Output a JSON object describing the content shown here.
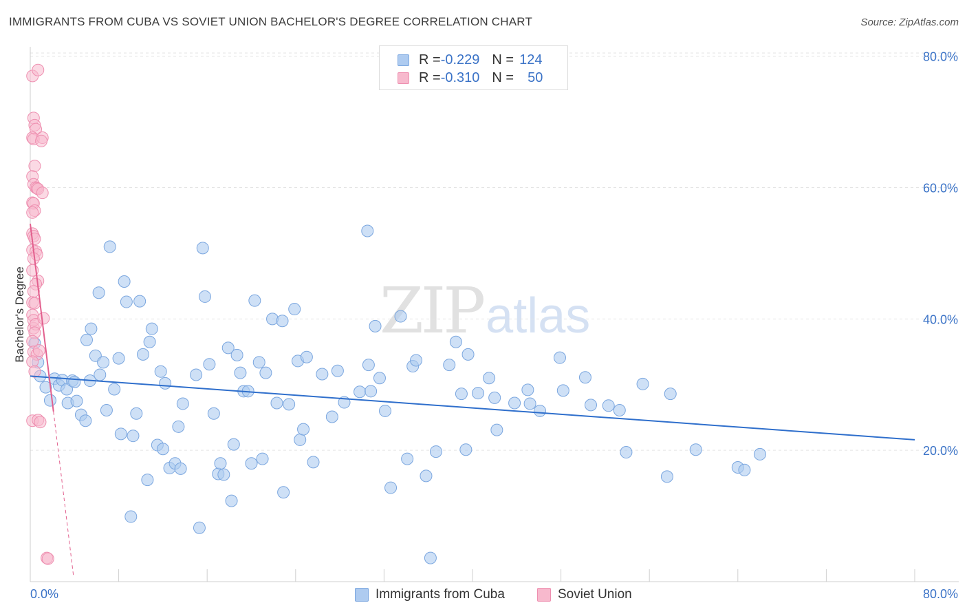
{
  "header": {
    "title": "IMMIGRANTS FROM CUBA VS SOVIET UNION BACHELOR'S DEGREE CORRELATION CHART",
    "source": "Source: ZipAtlas.com"
  },
  "legend": {
    "rows": [
      {
        "r_label": "R = ",
        "r_value": "-0.229",
        "n_label": "N = ",
        "n_value": "124"
      },
      {
        "r_label": "R = ",
        "r_value": "-0.310",
        "n_label": "N = ",
        "n_value": "50"
      }
    ]
  },
  "watermark": {
    "zip": "ZIP",
    "atlas": "atlas"
  },
  "colors": {
    "cuba_fill": "#aecbf0",
    "cuba_stroke": "#7aa6df",
    "cuba_line": "#2f6fcc",
    "soviet_fill": "#f7b9cd",
    "soviet_stroke": "#ee8fb0",
    "soviet_line": "#e2608e",
    "axis_label": "#3b73c7",
    "grid": "#e3e3e3"
  },
  "chart_data": {
    "type": "scatter",
    "title": "IMMIGRANTS FROM CUBA VS SOVIET UNION BACHELOR'S DEGREE CORRELATION CHART",
    "xlabel": "",
    "ylabel": "Bachelor's Degree",
    "xlim": [
      0,
      80
    ],
    "ylim": [
      0,
      80
    ],
    "x_tick_labels": [
      "0.0%",
      "80.0%"
    ],
    "y_ticks": [
      20,
      40,
      60,
      80
    ],
    "y_tick_labels": [
      "20.0%",
      "40.0%",
      "60.0%",
      "80.0%"
    ],
    "grid": true,
    "legend_position": "bottom",
    "series": [
      {
        "name": "Immigrants from Cuba",
        "r": -0.229,
        "n": 124,
        "trend": {
          "x0": 0.0,
          "y0": 31.3,
          "x1": 80.0,
          "y1": 21.6
        },
        "points": [
          [
            0.4,
            36.3
          ],
          [
            0.7,
            33.4
          ],
          [
            0.9,
            31.3
          ],
          [
            1.4,
            29.6
          ],
          [
            1.8,
            27.6
          ],
          [
            2.2,
            30.9
          ],
          [
            2.6,
            29.9
          ],
          [
            2.9,
            30.7
          ],
          [
            3.3,
            29.3
          ],
          [
            3.4,
            27.2
          ],
          [
            3.8,
            30.6
          ],
          [
            4.0,
            30.4
          ],
          [
            4.2,
            27.5
          ],
          [
            4.6,
            25.4
          ],
          [
            5.0,
            24.5
          ],
          [
            5.1,
            36.8
          ],
          [
            5.4,
            30.6
          ],
          [
            5.5,
            38.5
          ],
          [
            5.9,
            34.4
          ],
          [
            6.2,
            44.0
          ],
          [
            6.3,
            31.5
          ],
          [
            6.6,
            33.4
          ],
          [
            6.9,
            26.1
          ],
          [
            7.2,
            51.0
          ],
          [
            7.6,
            29.3
          ],
          [
            8.0,
            34.0
          ],
          [
            8.2,
            22.5
          ],
          [
            8.5,
            45.7
          ],
          [
            8.7,
            42.6
          ],
          [
            9.1,
            9.9
          ],
          [
            9.3,
            22.2
          ],
          [
            9.6,
            25.6
          ],
          [
            9.9,
            42.7
          ],
          [
            10.2,
            34.6
          ],
          [
            10.6,
            15.5
          ],
          [
            10.8,
            36.5
          ],
          [
            11.0,
            38.5
          ],
          [
            11.5,
            20.8
          ],
          [
            11.8,
            32.0
          ],
          [
            12.0,
            20.2
          ],
          [
            12.2,
            30.2
          ],
          [
            12.6,
            17.3
          ],
          [
            13.1,
            18.0
          ],
          [
            13.4,
            23.6
          ],
          [
            13.6,
            17.2
          ],
          [
            13.8,
            27.1
          ],
          [
            15.0,
            31.5
          ],
          [
            15.3,
            8.2
          ],
          [
            15.6,
            50.8
          ],
          [
            15.8,
            43.4
          ],
          [
            16.2,
            33.1
          ],
          [
            16.6,
            25.6
          ],
          [
            17.0,
            16.4
          ],
          [
            17.2,
            18.0
          ],
          [
            17.5,
            16.3
          ],
          [
            17.9,
            35.6
          ],
          [
            18.2,
            12.3
          ],
          [
            18.4,
            20.9
          ],
          [
            18.7,
            34.5
          ],
          [
            19.0,
            31.8
          ],
          [
            19.3,
            29.0
          ],
          [
            19.7,
            29.0
          ],
          [
            20.0,
            18.0
          ],
          [
            20.3,
            42.8
          ],
          [
            20.7,
            33.4
          ],
          [
            21.0,
            18.7
          ],
          [
            21.3,
            31.8
          ],
          [
            21.9,
            40.0
          ],
          [
            22.3,
            27.2
          ],
          [
            22.8,
            39.7
          ],
          [
            22.9,
            13.6
          ],
          [
            23.4,
            27.0
          ],
          [
            23.9,
            41.5
          ],
          [
            24.2,
            33.6
          ],
          [
            24.4,
            21.6
          ],
          [
            24.7,
            23.2
          ],
          [
            25.0,
            34.2
          ],
          [
            25.6,
            18.2
          ],
          [
            26.4,
            31.6
          ],
          [
            27.3,
            25.1
          ],
          [
            27.8,
            32.1
          ],
          [
            28.4,
            27.3
          ],
          [
            29.8,
            28.9
          ],
          [
            30.6,
            33.0
          ],
          [
            30.8,
            29.0
          ],
          [
            31.2,
            38.9
          ],
          [
            31.6,
            31.0
          ],
          [
            32.1,
            26.0
          ],
          [
            32.6,
            14.3
          ],
          [
            33.5,
            40.4
          ],
          [
            34.1,
            18.7
          ],
          [
            34.6,
            32.8
          ],
          [
            34.9,
            33.7
          ],
          [
            35.8,
            16.1
          ],
          [
            36.7,
            19.8
          ],
          [
            37.9,
            33.0
          ],
          [
            38.5,
            36.5
          ],
          [
            39.0,
            28.6
          ],
          [
            39.4,
            20.1
          ],
          [
            39.6,
            34.6
          ],
          [
            40.5,
            28.7
          ],
          [
            41.5,
            31.0
          ],
          [
            42.0,
            28.0
          ],
          [
            42.2,
            23.1
          ],
          [
            43.8,
            27.2
          ],
          [
            45.0,
            29.2
          ],
          [
            45.2,
            27.1
          ],
          [
            46.1,
            26.0
          ],
          [
            47.9,
            34.1
          ],
          [
            48.2,
            29.1
          ],
          [
            50.2,
            31.1
          ],
          [
            50.7,
            26.9
          ],
          [
            52.3,
            26.8
          ],
          [
            53.3,
            26.1
          ],
          [
            53.9,
            19.7
          ],
          [
            55.4,
            30.1
          ],
          [
            57.6,
            16.0
          ],
          [
            57.9,
            28.6
          ],
          [
            60.2,
            20.1
          ],
          [
            64.0,
            17.4
          ],
          [
            64.6,
            17.0
          ],
          [
            66.0,
            19.4
          ],
          [
            36.2,
            3.6
          ],
          [
            30.5,
            53.4
          ]
        ]
      },
      {
        "name": "Soviet Union",
        "r": -0.31,
        "n": 50,
        "trend": {
          "x0": 0.0,
          "y0": 54.5,
          "x1": 2.1,
          "y1": 25.9
        },
        "trend_ext": {
          "x0": 2.1,
          "y0": 25.9,
          "x1": 3.9,
          "y1": 1.0
        },
        "points": [
          [
            0.3,
            38.6
          ],
          [
            0.2,
            77.0
          ],
          [
            0.7,
            77.9
          ],
          [
            0.3,
            70.6
          ],
          [
            0.4,
            69.5
          ],
          [
            0.5,
            68.9
          ],
          [
            0.2,
            67.6
          ],
          [
            0.3,
            67.4
          ],
          [
            1.1,
            67.6
          ],
          [
            1.0,
            67.1
          ],
          [
            0.4,
            63.3
          ],
          [
            0.2,
            61.7
          ],
          [
            0.3,
            60.5
          ],
          [
            0.5,
            60.0
          ],
          [
            0.6,
            59.9
          ],
          [
            0.7,
            59.8
          ],
          [
            1.1,
            59.2
          ],
          [
            0.2,
            57.7
          ],
          [
            0.3,
            57.6
          ],
          [
            0.4,
            56.5
          ],
          [
            0.2,
            56.2
          ],
          [
            0.2,
            53.0
          ],
          [
            0.3,
            52.6
          ],
          [
            0.4,
            52.2
          ],
          [
            0.2,
            50.5
          ],
          [
            0.5,
            50.3
          ],
          [
            0.6,
            49.8
          ],
          [
            0.3,
            49.2
          ],
          [
            0.2,
            47.4
          ],
          [
            0.7,
            45.8
          ],
          [
            0.5,
            45.3
          ],
          [
            0.3,
            44.2
          ],
          [
            0.2,
            42.5
          ],
          [
            0.4,
            42.4
          ],
          [
            0.2,
            40.6
          ],
          [
            0.3,
            39.8
          ],
          [
            0.5,
            39.2
          ],
          [
            0.4,
            37.9
          ],
          [
            0.2,
            36.6
          ],
          [
            0.3,
            35.0
          ],
          [
            0.6,
            34.6
          ],
          [
            0.2,
            33.5
          ],
          [
            0.4,
            32.0
          ],
          [
            0.2,
            24.5
          ],
          [
            0.7,
            24.6
          ],
          [
            0.9,
            24.3
          ],
          [
            1.5,
            3.6
          ],
          [
            1.6,
            3.5
          ],
          [
            1.2,
            40.1
          ],
          [
            0.8,
            35.2
          ]
        ]
      }
    ]
  }
}
